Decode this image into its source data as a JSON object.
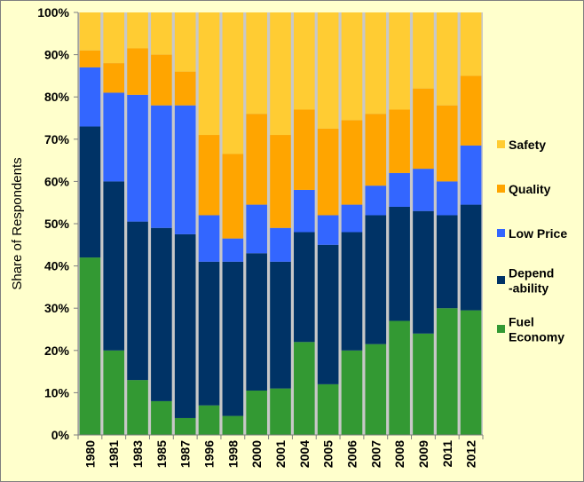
{
  "chart_data": {
    "type": "bar",
    "stacked": true,
    "title": "",
    "xlabel": "",
    "ylabel": "Share of Respondents",
    "ylim": [
      0,
      100
    ],
    "yticks": [
      "0%",
      "10%",
      "20%",
      "30%",
      "40%",
      "50%",
      "60%",
      "70%",
      "80%",
      "90%",
      "100%"
    ],
    "grid": false,
    "legend_position": "right",
    "categories": [
      "1980",
      "1981",
      "1983",
      "1985",
      "1987",
      "1996",
      "1998",
      "2000",
      "2001",
      "2004",
      "2005",
      "2006",
      "2007",
      "2008",
      "2009",
      "2011",
      "2012"
    ],
    "series": [
      {
        "name": "Fuel Economy",
        "legend_lines": [
          "Fuel",
          "Economy"
        ],
        "color": "#339933",
        "values": [
          42,
          20,
          13,
          8,
          4,
          7,
          4.5,
          10.5,
          11,
          22,
          12,
          20,
          21.5,
          27,
          24,
          30,
          29.5
        ]
      },
      {
        "name": "Dependability",
        "legend_lines": [
          "Depend",
          "-ability"
        ],
        "color": "#003366",
        "values": [
          31,
          40,
          37.5,
          41,
          43.5,
          34,
          36.5,
          32.5,
          30,
          26,
          33,
          28,
          30.5,
          27,
          29,
          22,
          25
        ]
      },
      {
        "name": "Low Price",
        "legend_lines": [
          "Low Price"
        ],
        "color": "#3366ff",
        "values": [
          14,
          21,
          30,
          29,
          30.5,
          11,
          5.5,
          11.5,
          8,
          10,
          7,
          6.5,
          7,
          8,
          10,
          8,
          14
        ]
      },
      {
        "name": "Quality",
        "legend_lines": [
          "Quality"
        ],
        "color": "#ffa500",
        "values": [
          4,
          7,
          11,
          12,
          8,
          19,
          20,
          21.5,
          22,
          19,
          20.5,
          20,
          17,
          15,
          19,
          18,
          16.5
        ]
      },
      {
        "name": "Safety",
        "legend_lines": [
          "Safety"
        ],
        "color": "#ffcc33",
        "values": [
          9,
          12,
          8.5,
          10,
          14,
          29,
          33.5,
          24,
          29,
          23,
          27.5,
          25.5,
          24,
          23,
          18,
          22,
          15
        ]
      }
    ]
  }
}
